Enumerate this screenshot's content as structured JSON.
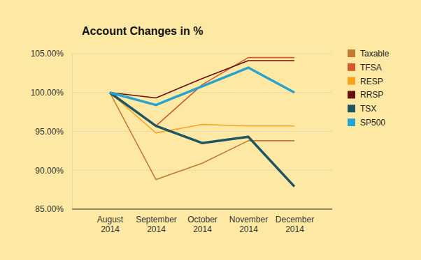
{
  "chart_data": {
    "type": "line",
    "title": "Account Changes in %",
    "categories": [
      "August 2014",
      "September 2014",
      "October 2014",
      "November 2014",
      "December 2014"
    ],
    "series": [
      {
        "name": "Taxable",
        "color": "#c27a30",
        "line_style": "solid",
        "values": [
          100,
          88.8,
          90.9,
          93.8,
          93.8
        ]
      },
      {
        "name": "TFSA",
        "color": "#d2582f",
        "line_style": "solid",
        "values": [
          100,
          95.7,
          101.0,
          104.5,
          104.5
        ]
      },
      {
        "name": "RESP",
        "color": "#f6a21c",
        "line_style": "solid",
        "values": [
          100,
          94.8,
          95.9,
          95.7,
          95.7
        ]
      },
      {
        "name": "RRSP",
        "color": "#6a0f0c",
        "line_style": "solid",
        "values": [
          100,
          99.3,
          101.8,
          104.1,
          104.1
        ]
      },
      {
        "name": "TSX",
        "color": "#1f5662",
        "line_style": "thick",
        "values": [
          100,
          95.7,
          93.5,
          94.3,
          87.9
        ]
      },
      {
        "name": "SP500",
        "color": "#29a2cf",
        "line_style": "thick",
        "values": [
          100,
          98.4,
          100.8,
          103.2,
          100.0
        ]
      }
    ],
    "ylim": [
      85,
      105
    ],
    "yticks": [
      {
        "value": 85,
        "label": "85.00%"
      },
      {
        "value": 90,
        "label": "90.00%"
      },
      {
        "value": 95,
        "label": "95.00%"
      },
      {
        "value": 100,
        "label": "100.00%"
      },
      {
        "value": 105,
        "label": "105.00%"
      }
    ],
    "grid": true,
    "legend": "right"
  }
}
